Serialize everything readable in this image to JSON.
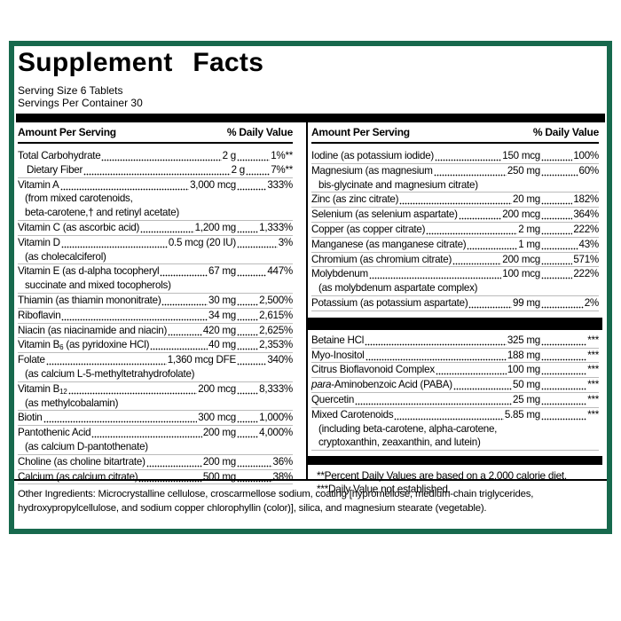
{
  "title": "Supplement Facts",
  "serving_size": "Serving Size 6 Tablets",
  "servings_per_container": "Servings Per Container 30",
  "columns": [
    {
      "header_amount": "Amount Per Serving",
      "header_dv": "% Daily Value",
      "sections": [
        {
          "rows": [
            {
              "name": "Total Carbohydrate",
              "amount": "2 g",
              "dv": "1%**",
              "subrows": [
                {
                  "name": "Dietary Fiber",
                  "amount": "2 g",
                  "dv": "7%**"
                }
              ]
            },
            {
              "name": "Vitamin A",
              "amount": "3,000 mcg",
              "dv": "333%",
              "notes": [
                "(from mixed carotenoids,",
                "beta-carotene,† and retinyl acetate)"
              ]
            },
            {
              "name": "Vitamin C (as ascorbic acid)",
              "amount": "1,200 mg",
              "dv": "1,333%"
            },
            {
              "name": "Vitamin D",
              "amount": "0.5 mcg (20 IU)",
              "dv": "3%",
              "notes": [
                "(as cholecalciferol)"
              ]
            },
            {
              "name": "Vitamin E (as d-alpha tocopheryl",
              "amount": "67 mg",
              "dv": "447%",
              "notes": [
                "succinate and mixed tocopherols)"
              ]
            },
            {
              "name": "Thiamin (as thiamin mononitrate)",
              "amount": "30 mg",
              "dv": "2,500%"
            },
            {
              "name": "Riboflavin",
              "amount": "34 mg",
              "dv": "2,615%"
            },
            {
              "name": "Niacin (as niacinamide and niacin)",
              "amount": "420 mg",
              "dv": "2,625%"
            },
            {
              "name": "Vitamin B",
              "name_sub": "6",
              "name_after": "(as pyridoxine HCl)",
              "amount": "40 mg",
              "dv": "2,353%"
            },
            {
              "name": "Folate",
              "amount": "1,360 mcg DFE",
              "dv": "340%",
              "notes": [
                "(as calcium L-5-methyltetrahydrofolate)"
              ]
            },
            {
              "name": "Vitamin B",
              "name_sub": "12",
              "amount": "200 mcg",
              "dv": "8,333%",
              "notes": [
                "(as methylcobalamin)"
              ]
            },
            {
              "name": "Biotin",
              "amount": "300 mcg",
              "dv": "1,000%"
            },
            {
              "name": "Pantothenic Acid",
              "amount": "200 mg",
              "dv": "4,000%",
              "notes": [
                "(as calcium D-pantothenate)"
              ]
            },
            {
              "name": "Choline (as choline bitartrate)",
              "amount": "200 mg",
              "dv": "36%"
            },
            {
              "name": "Calcium (as calcium citrate)",
              "amount": "500 mg",
              "dv": "38%"
            }
          ]
        }
      ]
    },
    {
      "header_amount": "Amount Per Serving",
      "header_dv": "% Daily Value",
      "sections": [
        {
          "rows": [
            {
              "name": "Iodine (as potassium iodide)",
              "amount": "150 mcg",
              "dv": "100%"
            },
            {
              "name": "Magnesium (as magnesium",
              "amount": "250 mg",
              "dv": "60%",
              "notes": [
                "bis-glycinate and magnesium citrate)"
              ]
            },
            {
              "name": "Zinc (as zinc citrate)",
              "amount": "20 mg",
              "dv": "182%"
            },
            {
              "name": "Selenium (as selenium aspartate)",
              "amount": "200 mcg",
              "dv": "364%"
            },
            {
              "name": "Copper (as copper citrate)",
              "amount": "2 mg",
              "dv": "222%"
            },
            {
              "name": "Manganese (as manganese citrate)",
              "amount": "1 mg",
              "dv": "43%"
            },
            {
              "name": "Chromium (as chromium citrate)",
              "amount": "200 mcg",
              "dv": "571%"
            },
            {
              "name": "Molybdenum",
              "amount": "100 mcg",
              "dv": "222%",
              "notes": [
                "(as molybdenum aspartate complex)"
              ]
            },
            {
              "name": "Potassium (as potassium aspartate)",
              "amount": "99 mg",
              "dv": "2%"
            }
          ]
        },
        {
          "rows": [
            {
              "name": "Betaine HCl",
              "amount": "325 mg",
              "dv": "***"
            },
            {
              "name": "Myo-Inositol",
              "amount": "188 mg",
              "dv": "***"
            },
            {
              "name": "Citrus Bioflavonoid Complex",
              "amount": "100 mg",
              "dv": "***"
            },
            {
              "name_italic": "para",
              "name": "-Aminobenzoic Acid (PABA)",
              "amount": "50 mg",
              "dv": "***"
            },
            {
              "name": "Quercetin",
              "amount": "25 mg",
              "dv": "***"
            },
            {
              "name": "Mixed Carotenoids",
              "amount": "5.85 mg",
              "dv": "***",
              "notes": [
                "(including beta-carotene, alpha-carotene,",
                "cryptoxanthin, zeaxanthin, and lutein)"
              ]
            }
          ]
        }
      ],
      "footnotes": [
        "**Percent Daily Values are based on a 2,000 calorie diet.",
        "***Daily Value not established."
      ]
    }
  ],
  "other_ingredients": "Other Ingredients: Microcrystalline cellulose, croscarmellose sodium, coating [hypromellose, medium-chain triglycerides, hydroxypropylcellulose, and sodium copper chlorophyllin (color)], silica, and magnesium stearate (vegetable)."
}
